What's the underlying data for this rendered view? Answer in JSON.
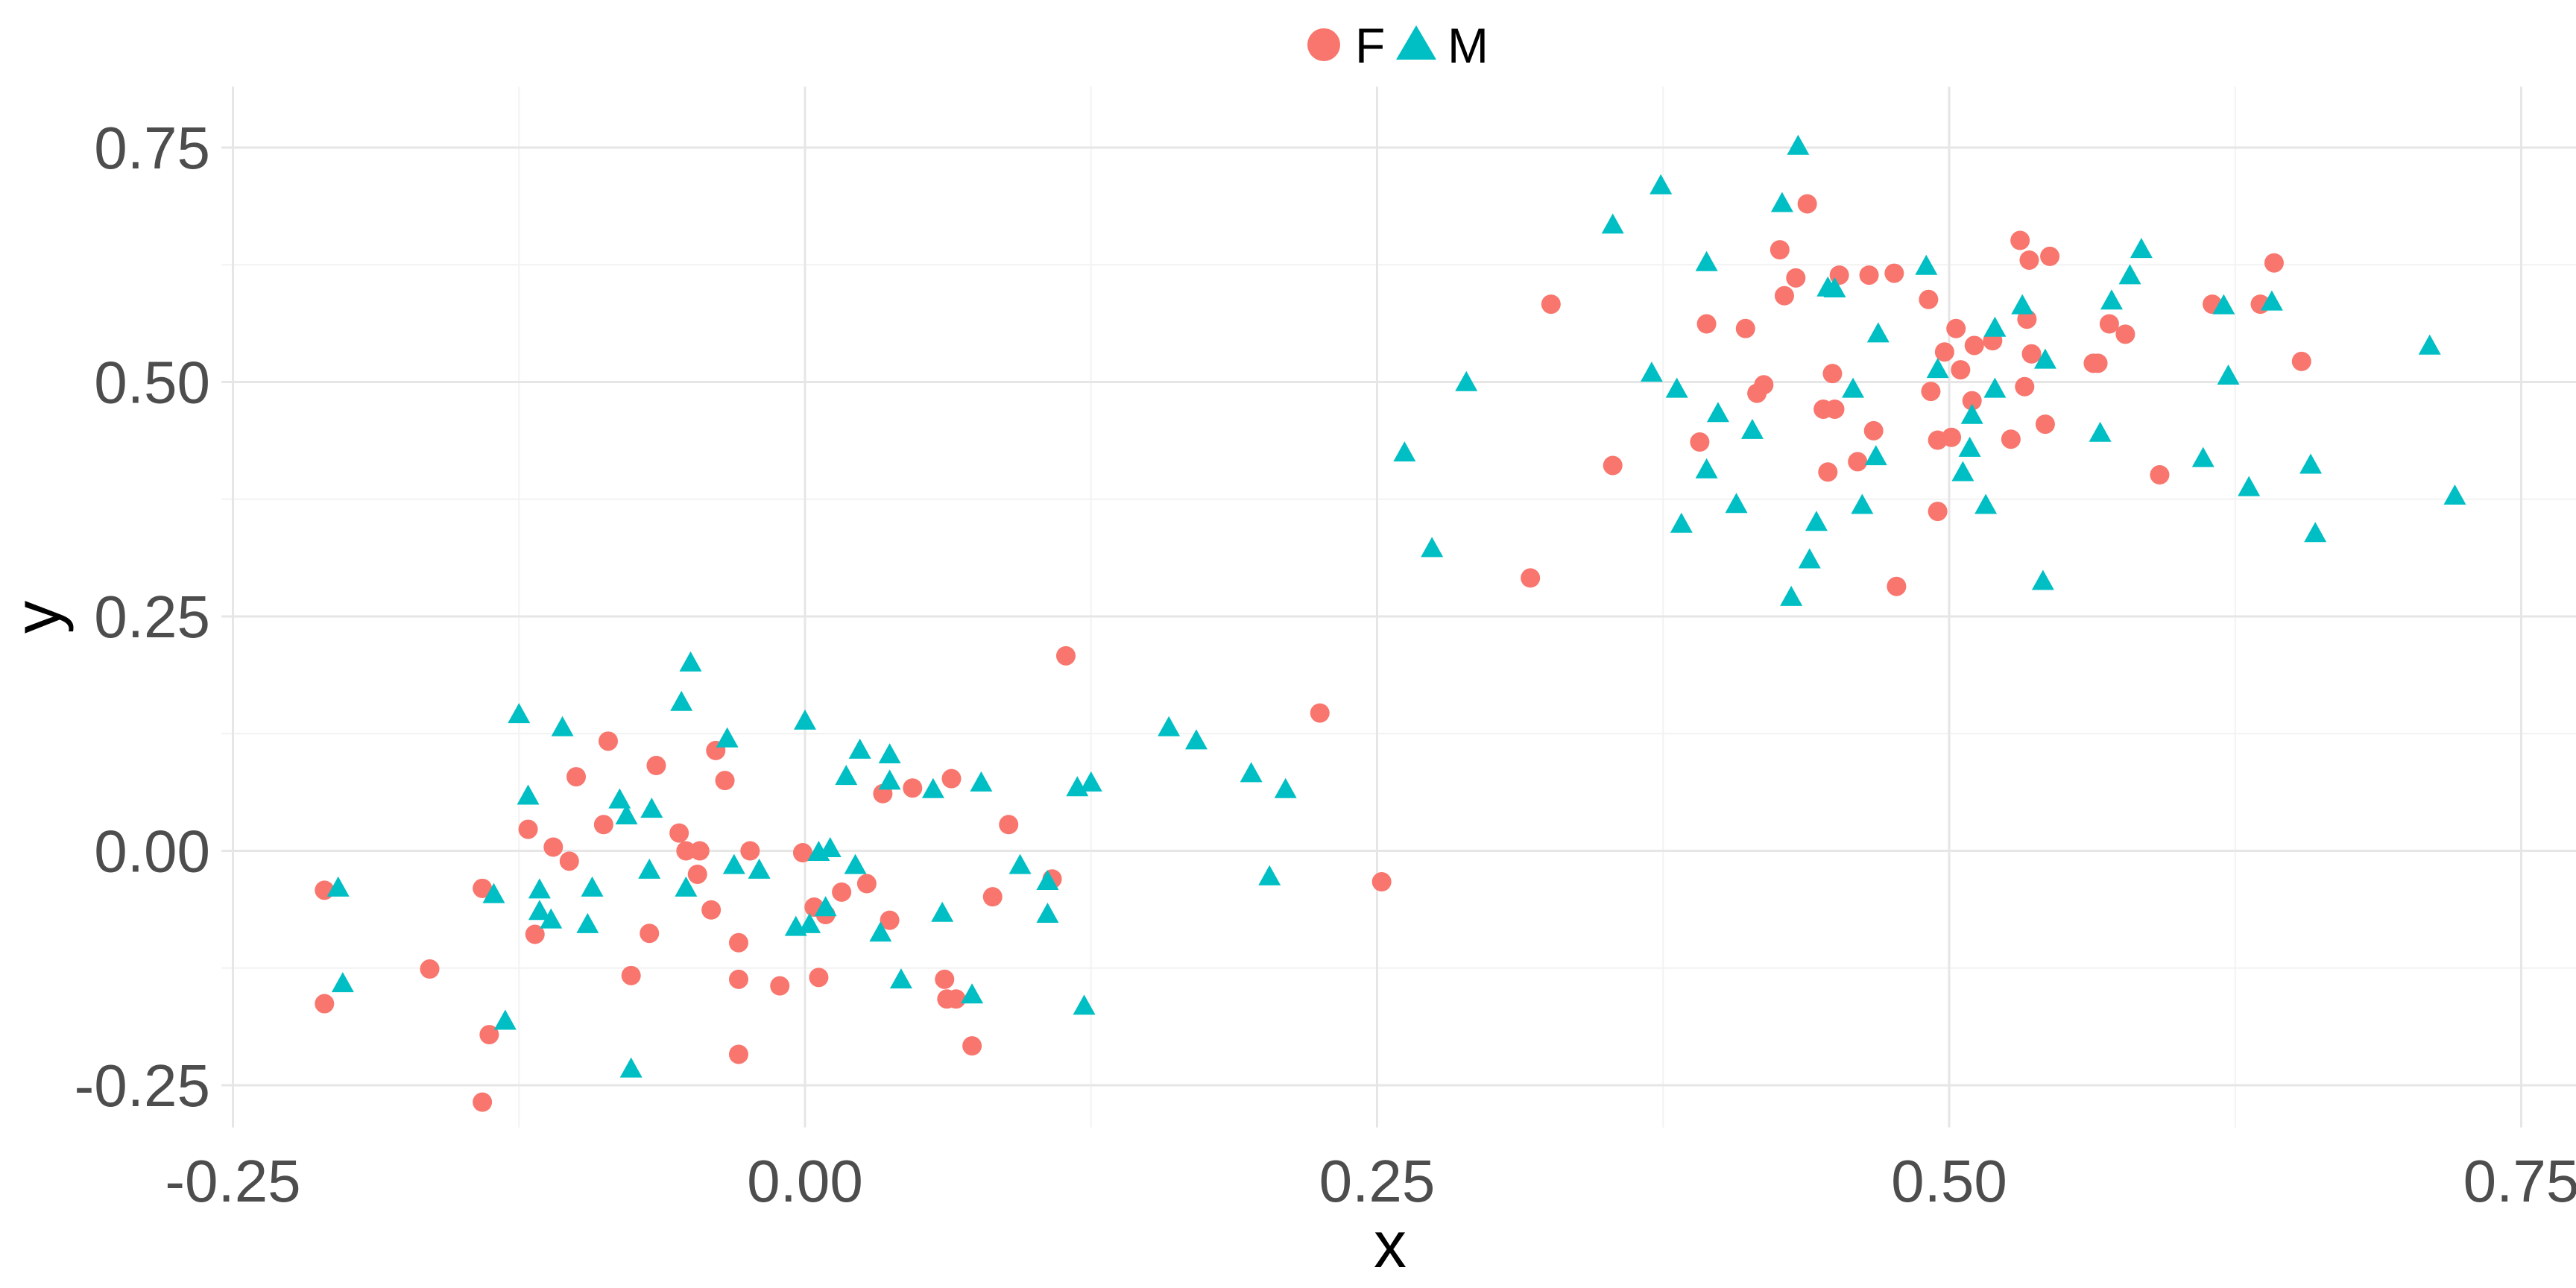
{
  "chart_data": {
    "type": "scatter",
    "title": "",
    "xlabel": "x",
    "ylabel": "y",
    "xlim": [
      -0.255,
      0.775
    ],
    "ylim": [
      -0.295,
      0.815
    ],
    "xticks": [
      -0.25,
      0.0,
      0.25,
      0.5,
      0.75
    ],
    "xtick_labels": [
      "-0.25",
      "0.00",
      "0.25",
      "0.50",
      "0.75"
    ],
    "yticks": [
      -0.25,
      0.0,
      0.25,
      0.5,
      0.75
    ],
    "ytick_labels": [
      "-0.25",
      "0.00",
      "0.25",
      "0.50",
      "0.75"
    ],
    "grid": true,
    "legend": {
      "position": "top",
      "entries": [
        "F",
        "M"
      ]
    },
    "series": [
      {
        "name": "F",
        "marker": "circle",
        "color": "#F8766D",
        "points": [
          [
            -0.21,
            -0.042
          ],
          [
            -0.21,
            -0.163
          ],
          [
            -0.164,
            -0.126
          ],
          [
            -0.141,
            -0.04
          ],
          [
            -0.138,
            -0.196
          ],
          [
            -0.141,
            -0.268
          ],
          [
            -0.121,
            0.023
          ],
          [
            -0.118,
            -0.089
          ],
          [
            -0.11,
            0.004
          ],
          [
            -0.103,
            -0.011
          ],
          [
            -0.1,
            0.079
          ],
          [
            -0.086,
            0.117
          ],
          [
            -0.088,
            0.028
          ],
          [
            -0.065,
            0.091
          ],
          [
            -0.076,
            -0.133
          ],
          [
            -0.068,
            -0.088
          ],
          [
            -0.055,
            0.019
          ],
          [
            -0.052,
            0.0
          ],
          [
            -0.046,
            0.0
          ],
          [
            -0.047,
            -0.025
          ],
          [
            -0.041,
            -0.063
          ],
          [
            -0.039,
            0.107
          ],
          [
            -0.035,
            0.075
          ],
          [
            -0.029,
            -0.098
          ],
          [
            -0.029,
            -0.137
          ],
          [
            -0.029,
            -0.217
          ],
          [
            -0.024,
            0.0
          ],
          [
            -0.011,
            -0.144
          ],
          [
            -0.001,
            -0.002
          ],
          [
            0.004,
            -0.06
          ],
          [
            0.006,
            -0.135
          ],
          [
            0.009,
            -0.068
          ],
          [
            0.016,
            -0.044
          ],
          [
            0.027,
            -0.035
          ],
          [
            0.034,
            0.061
          ],
          [
            0.037,
            -0.074
          ],
          [
            0.047,
            0.067
          ],
          [
            0.061,
            -0.137
          ],
          [
            0.062,
            -0.158
          ],
          [
            0.066,
            -0.158
          ],
          [
            0.064,
            0.077
          ],
          [
            0.073,
            -0.208
          ],
          [
            0.082,
            -0.049
          ],
          [
            0.089,
            0.028
          ],
          [
            0.108,
            -0.03
          ],
          [
            0.114,
            0.208
          ],
          [
            0.225,
            0.147
          ],
          [
            0.252,
            -0.033
          ],
          [
            0.317,
            0.291
          ],
          [
            0.326,
            0.583
          ],
          [
            0.353,
            0.411
          ],
          [
            0.391,
            0.436
          ],
          [
            0.394,
            0.562
          ],
          [
            0.411,
            0.557
          ],
          [
            0.416,
            0.488
          ],
          [
            0.419,
            0.497
          ],
          [
            0.426,
            0.641
          ],
          [
            0.428,
            0.592
          ],
          [
            0.433,
            0.611
          ],
          [
            0.438,
            0.69
          ],
          [
            0.445,
            0.471
          ],
          [
            0.449,
            0.509
          ],
          [
            0.45,
            0.471
          ],
          [
            0.452,
            0.614
          ],
          [
            0.447,
            0.404
          ],
          [
            0.46,
            0.415
          ],
          [
            0.465,
            0.614
          ],
          [
            0.467,
            0.448
          ],
          [
            0.476,
            0.616
          ],
          [
            0.477,
            0.282
          ],
          [
            0.491,
            0.588
          ],
          [
            0.492,
            0.49
          ],
          [
            0.495,
            0.438
          ],
          [
            0.495,
            0.362
          ],
          [
            0.498,
            0.532
          ],
          [
            0.501,
            0.441
          ],
          [
            0.503,
            0.557
          ],
          [
            0.505,
            0.513
          ],
          [
            0.51,
            0.48
          ],
          [
            0.511,
            0.539
          ],
          [
            0.519,
            0.544
          ],
          [
            0.527,
            0.439
          ],
          [
            0.531,
            0.651
          ],
          [
            0.535,
            0.63
          ],
          [
            0.534,
            0.567
          ],
          [
            0.536,
            0.53
          ],
          [
            0.533,
            0.495
          ],
          [
            0.544,
            0.634
          ],
          [
            0.542,
            0.455
          ],
          [
            0.563,
            0.52
          ],
          [
            0.565,
            0.52
          ],
          [
            0.57,
            0.562
          ],
          [
            0.577,
            0.551
          ],
          [
            0.592,
            0.401
          ],
          [
            0.615,
            0.583
          ],
          [
            0.642,
            0.627
          ],
          [
            0.636,
            0.583
          ],
          [
            0.654,
            0.522
          ]
        ]
      },
      {
        "name": "M",
        "marker": "triangle",
        "color": "#00BFC4",
        "points": [
          [
            -0.204,
            -0.04
          ],
          [
            -0.202,
            -0.142
          ],
          [
            -0.136,
            -0.047
          ],
          [
            -0.131,
            -0.182
          ],
          [
            -0.125,
            0.145
          ],
          [
            -0.121,
            0.058
          ],
          [
            -0.116,
            -0.042
          ],
          [
            -0.116,
            -0.065
          ],
          [
            -0.111,
            -0.074
          ],
          [
            -0.106,
            0.131
          ],
          [
            -0.093,
            -0.04
          ],
          [
            -0.095,
            -0.079
          ],
          [
            -0.081,
            0.054
          ],
          [
            -0.078,
            0.037
          ],
          [
            -0.076,
            -0.233
          ],
          [
            -0.068,
            -0.021
          ],
          [
            -0.067,
            0.044
          ],
          [
            -0.054,
            0.158
          ],
          [
            -0.052,
            -0.04
          ],
          [
            -0.05,
            0.2
          ],
          [
            -0.034,
            0.119
          ],
          [
            -0.031,
            -0.016
          ],
          [
            -0.02,
            -0.021
          ],
          [
            -0.004,
            -0.082
          ],
          [
            0.0,
            0.138
          ],
          [
            0.002,
            -0.079
          ],
          [
            0.006,
            -0.002
          ],
          [
            0.009,
            -0.061
          ],
          [
            0.011,
            0.002
          ],
          [
            0.018,
            0.079
          ],
          [
            0.022,
            -0.016
          ],
          [
            0.024,
            0.107
          ],
          [
            0.033,
            -0.088
          ],
          [
            0.037,
            0.102
          ],
          [
            0.037,
            0.074
          ],
          [
            0.042,
            -0.138
          ],
          [
            0.056,
            0.065
          ],
          [
            0.06,
            -0.067
          ],
          [
            0.077,
            0.072
          ],
          [
            0.073,
            -0.154
          ],
          [
            0.094,
            -0.016
          ],
          [
            0.106,
            -0.033
          ],
          [
            0.106,
            -0.068
          ],
          [
            0.119,
            0.067
          ],
          [
            0.122,
            -0.166
          ],
          [
            0.125,
            0.072
          ],
          [
            0.159,
            0.131
          ],
          [
            0.171,
            0.117
          ],
          [
            0.195,
            0.082
          ],
          [
            0.203,
            -0.028
          ],
          [
            0.21,
            0.065
          ],
          [
            0.262,
            0.424
          ],
          [
            0.274,
            0.322
          ],
          [
            0.289,
            0.499
          ],
          [
            0.353,
            0.667
          ],
          [
            0.37,
            0.509
          ],
          [
            0.374,
            0.709
          ],
          [
            0.381,
            0.492
          ],
          [
            0.383,
            0.348
          ],
          [
            0.394,
            0.627
          ],
          [
            0.394,
            0.406
          ],
          [
            0.399,
            0.466
          ],
          [
            0.407,
            0.369
          ],
          [
            0.414,
            0.448
          ],
          [
            0.427,
            0.69
          ],
          [
            0.431,
            0.27
          ],
          [
            0.434,
            0.751
          ],
          [
            0.439,
            0.31
          ],
          [
            0.442,
            0.35
          ],
          [
            0.447,
            0.6
          ],
          [
            0.45,
            0.599
          ],
          [
            0.458,
            0.492
          ],
          [
            0.462,
            0.368
          ],
          [
            0.468,
            0.42
          ],
          [
            0.469,
            0.551
          ],
          [
            0.49,
            0.623
          ],
          [
            0.495,
            0.513
          ],
          [
            0.506,
            0.403
          ],
          [
            0.509,
            0.429
          ],
          [
            0.51,
            0.464
          ],
          [
            0.516,
            0.368
          ],
          [
            0.52,
            0.492
          ],
          [
            0.52,
            0.557
          ],
          [
            0.532,
            0.581
          ],
          [
            0.542,
            0.523
          ],
          [
            0.541,
            0.287
          ],
          [
            0.566,
            0.445
          ],
          [
            0.571,
            0.586
          ],
          [
            0.579,
            0.613
          ],
          [
            0.584,
            0.641
          ],
          [
            0.611,
            0.418
          ],
          [
            0.62,
            0.581
          ],
          [
            0.622,
            0.506
          ],
          [
            0.631,
            0.387
          ],
          [
            0.641,
            0.585
          ],
          [
            0.658,
            0.411
          ],
          [
            0.66,
            0.338
          ],
          [
            0.71,
            0.538
          ],
          [
            0.721,
            0.378
          ]
        ]
      }
    ]
  }
}
